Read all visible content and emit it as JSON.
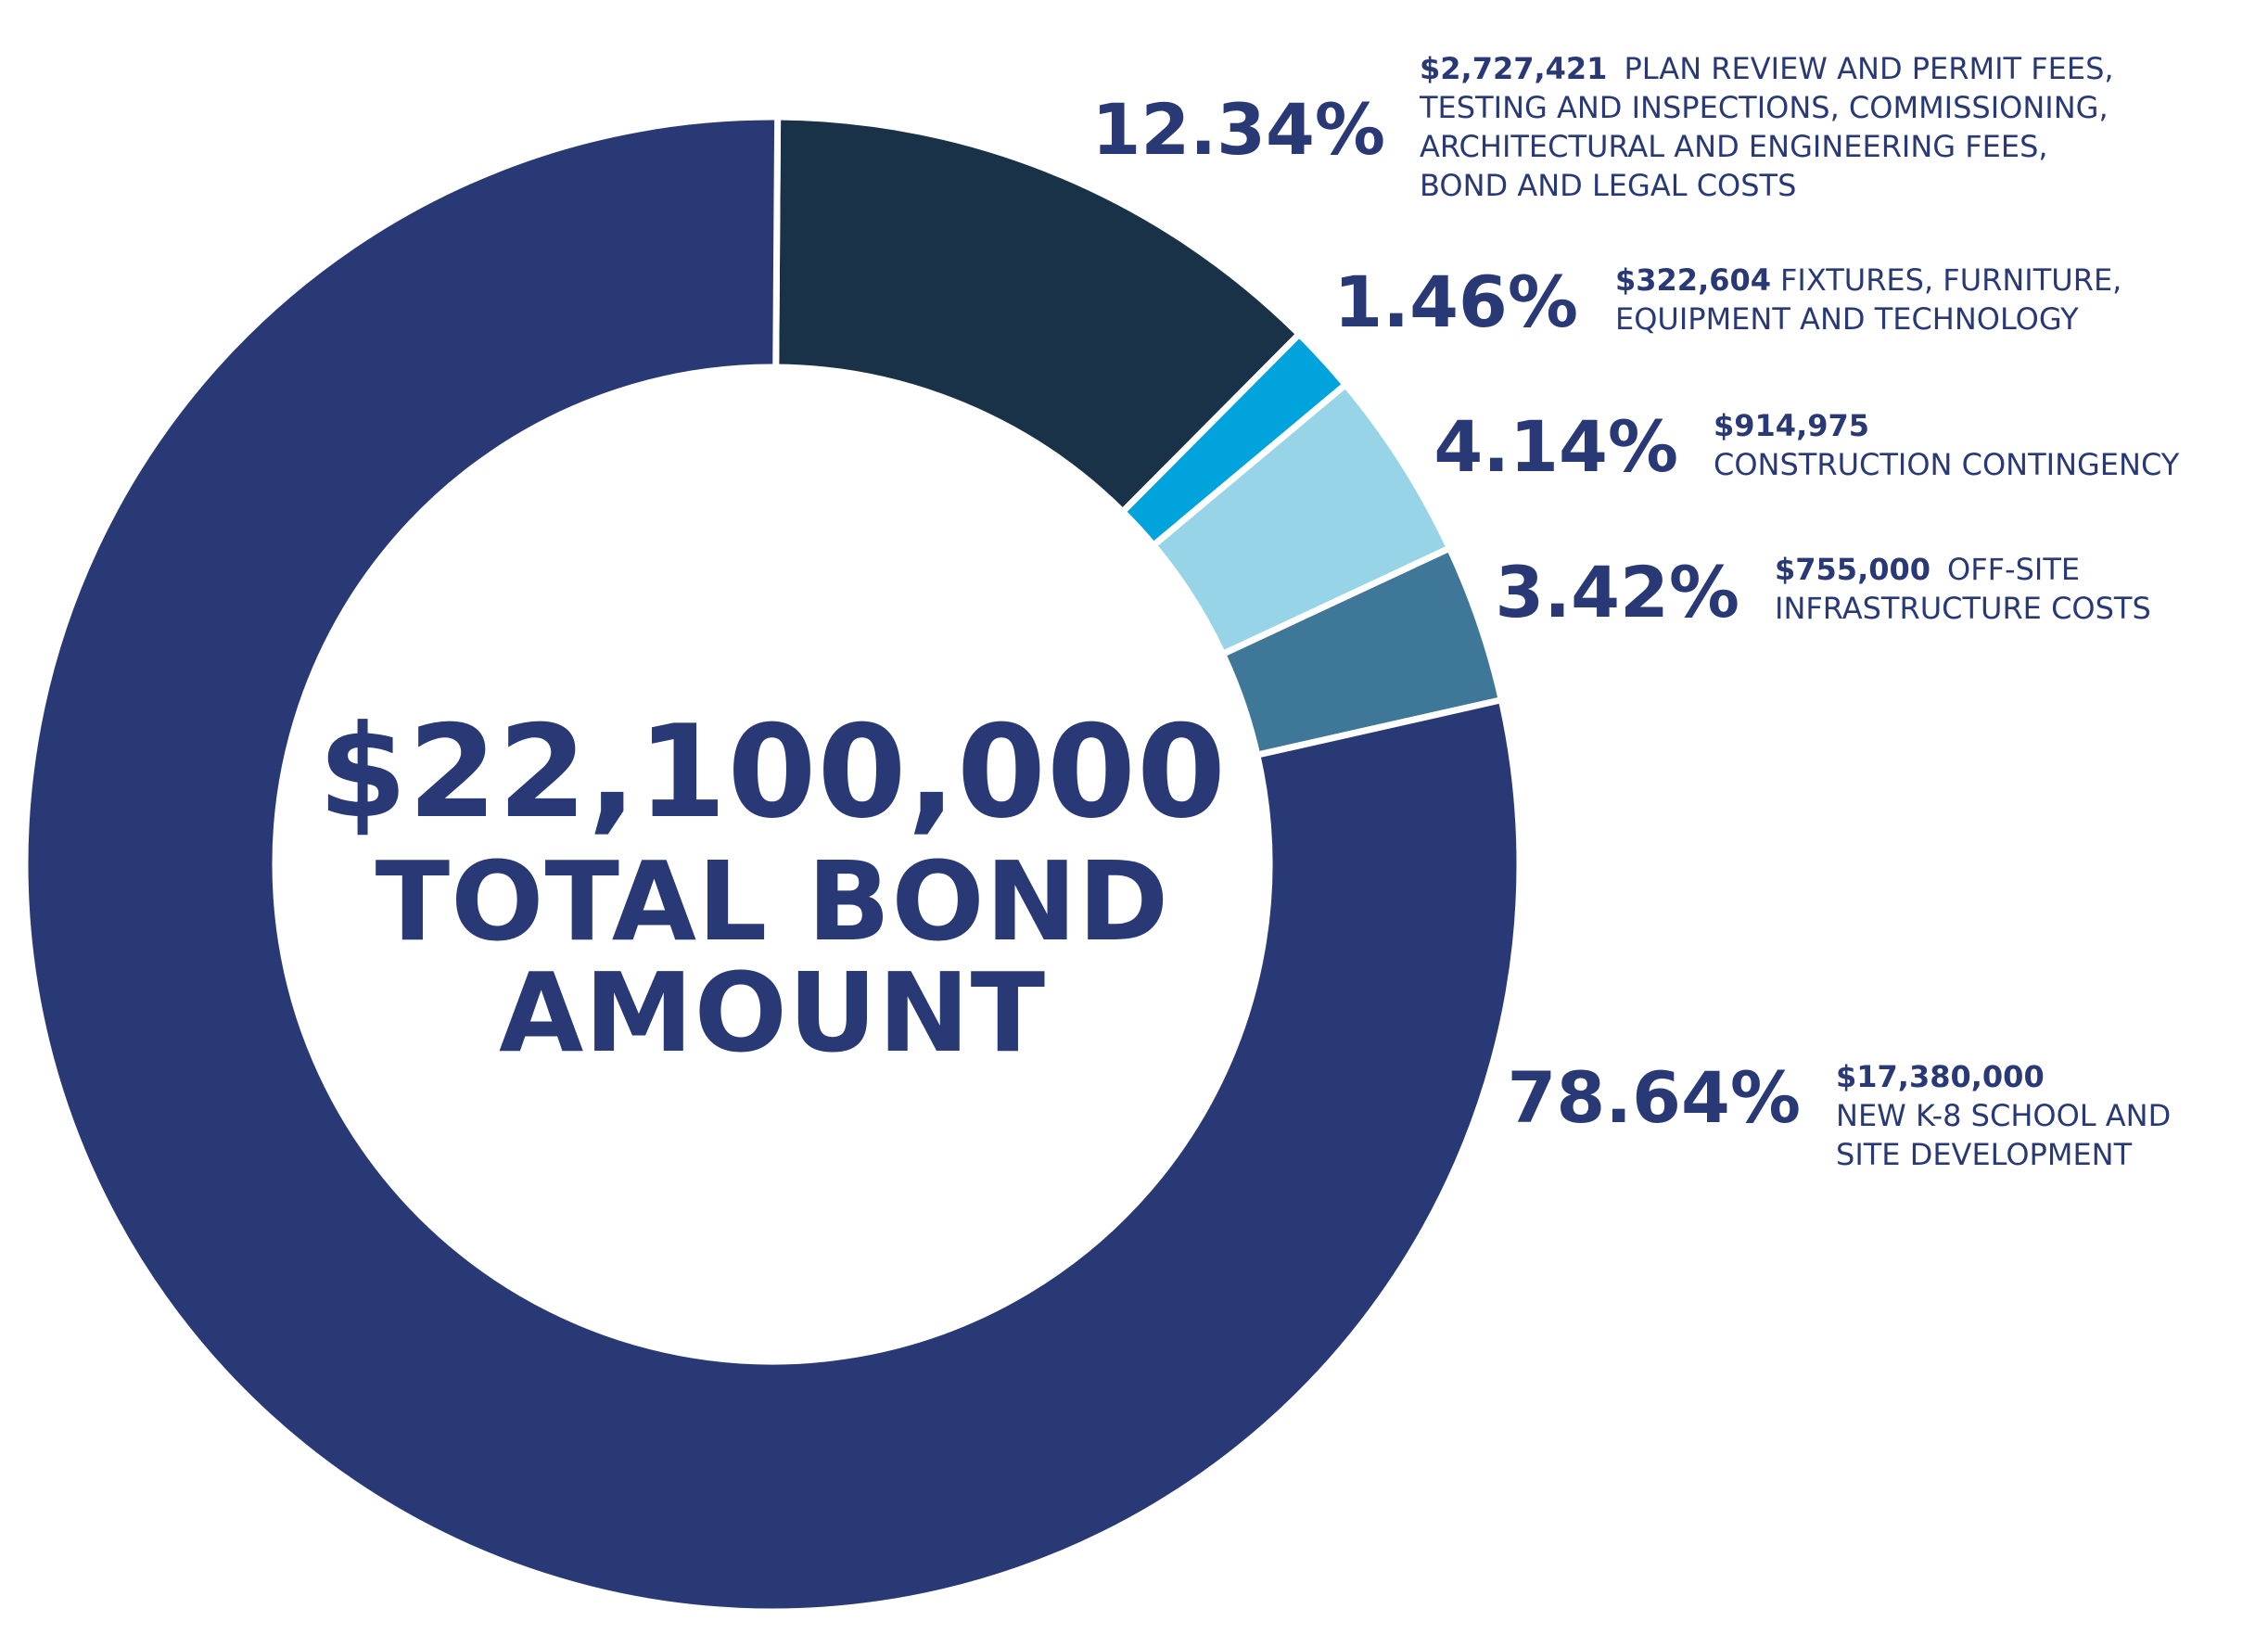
{
  "colors": {
    "text": "#293975",
    "background": "#ffffff"
  },
  "center": {
    "amount": "$22,100,000",
    "caption_line1": "TOTAL BOND",
    "caption_line2": "AMOUNT"
  },
  "chart_data": {
    "type": "pie",
    "subtype": "donut",
    "title": "$22,100,000 TOTAL BOND AMOUNT",
    "total": 22100000,
    "slices": [
      {
        "percent_label": "12.34%",
        "percent": 12.34,
        "amount_label": "$2,727,421",
        "amount": 2727421,
        "desc_lines": [
          "PLAN REVIEW AND PERMIT FEES,",
          "TESTING AND INSPECTIONS, COMMISSIONING,",
          "ARCHITECTURAL AND ENGINEERING FEES,",
          "BOND AND LEGAL COSTS"
        ],
        "color": "#1a3248"
      },
      {
        "percent_label": "1.46%",
        "percent": 1.46,
        "amount_label": "$322,604",
        "amount": 322604,
        "desc_lines": [
          "FIXTURES, FURNITURE,",
          "EQUIPMENT AND TECHNOLOGY"
        ],
        "color": "#00a3dc"
      },
      {
        "percent_label": "4.14%",
        "percent": 4.14,
        "amount_label": "$914,975",
        "amount": 914975,
        "desc_lines": [
          "CONSTRUCTION CONTINGENCY"
        ],
        "color": "#98d4e7"
      },
      {
        "percent_label": "3.42%",
        "percent": 3.42,
        "amount_label": "$755,000",
        "amount": 755000,
        "desc_lines": [
          "OFF-SITE",
          "INFRASTRUCTURE COSTS"
        ],
        "color": "#3e7798"
      },
      {
        "percent_label": "78.64%",
        "percent": 78.64,
        "amount_label": "$17,380,000",
        "amount": 17380000,
        "desc_lines": [
          "NEW K-8 SCHOOL AND",
          "SITE DEVELOPMENT"
        ],
        "color": "#293975"
      }
    ]
  }
}
